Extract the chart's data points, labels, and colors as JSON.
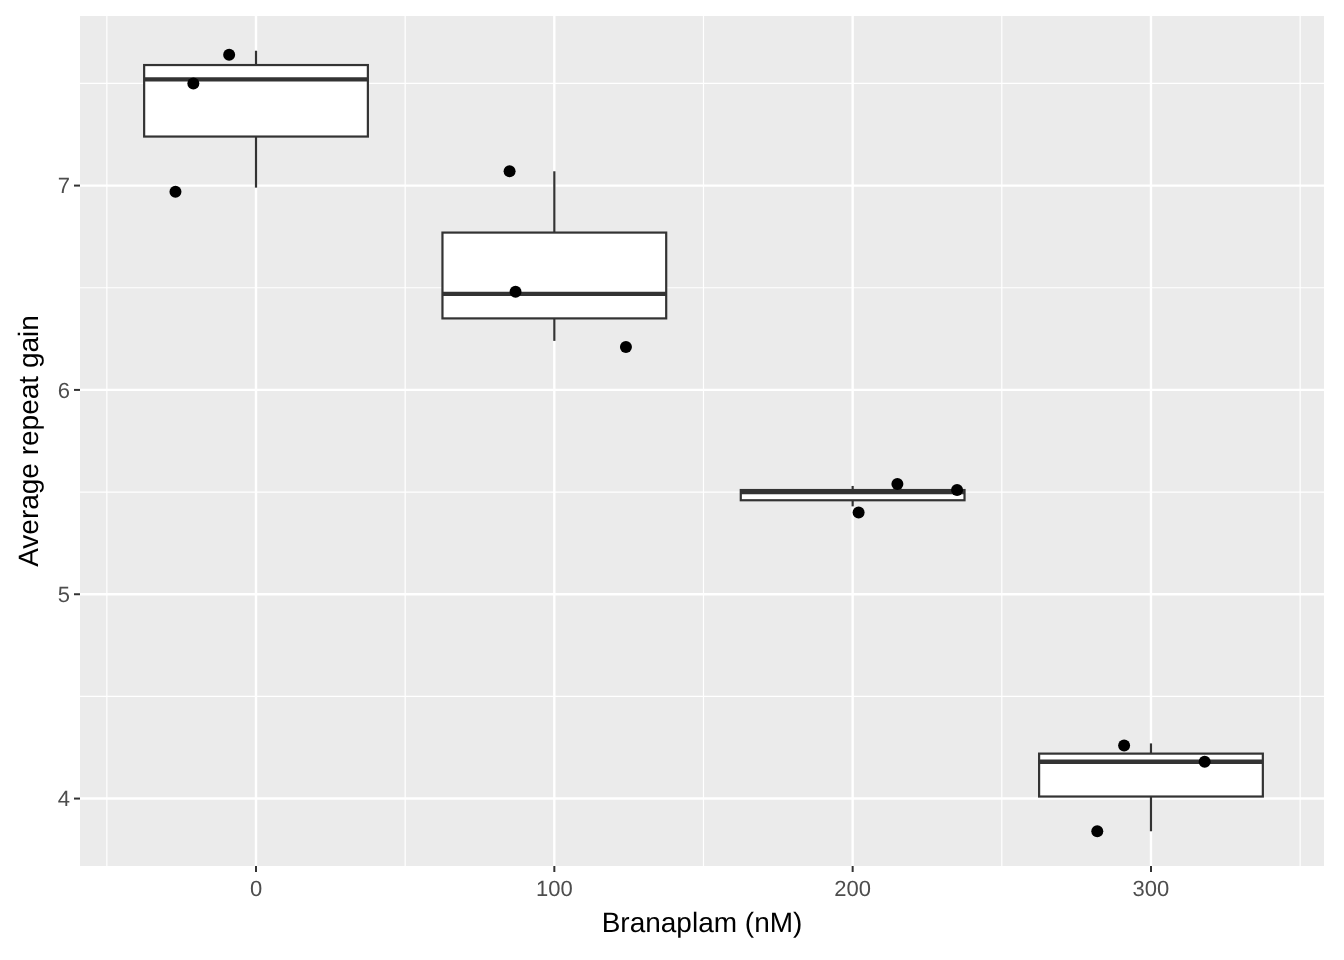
{
  "chart_data": {
    "type": "box",
    "xlabel": "Branaplam (nM)",
    "ylabel": "Average repeat gain",
    "x": [
      0,
      100,
      200,
      300
    ],
    "boxes": [
      {
        "low": 6.99,
        "q1": 7.24,
        "median": 7.52,
        "q3": 7.59,
        "high": 7.66
      },
      {
        "low": 6.24,
        "q1": 6.35,
        "median": 6.47,
        "q3": 6.77,
        "high": 7.07
      },
      {
        "low": 5.43,
        "q1": 5.46,
        "median": 5.5,
        "q3": 5.51,
        "high": 5.53
      },
      {
        "low": 3.84,
        "q1": 4.01,
        "median": 4.18,
        "q3": 4.22,
        "high": 4.27
      }
    ],
    "series": [
      {
        "type": "scatter",
        "color": "#000000",
        "x": [
          -9,
          -21,
          -27,
          85,
          87,
          124,
          215,
          235,
          202,
          291,
          318,
          282
        ],
        "values": [
          7.64,
          7.5,
          6.97,
          7.07,
          6.48,
          6.21,
          5.54,
          5.51,
          5.4,
          4.26,
          4.18,
          3.84
        ]
      }
    ],
    "xlim": [
      -59,
      358
    ],
    "ylim": [
      3.67,
      7.83
    ],
    "xticks": [
      0,
      100,
      200,
      300
    ],
    "yticks": [
      4,
      5,
      6,
      7
    ],
    "grid": true,
    "marker": "circle"
  }
}
